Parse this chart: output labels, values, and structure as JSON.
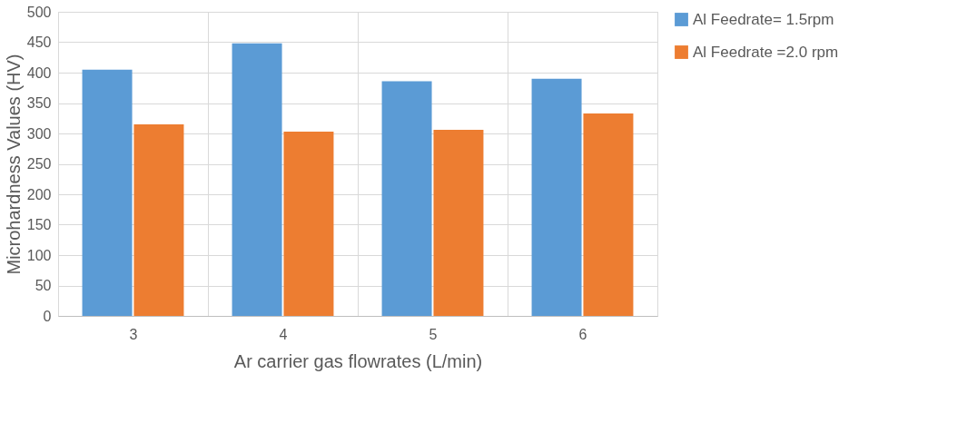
{
  "chart_data": {
    "type": "bar",
    "xlabel": "Ar carrier gas flowrates (L/min)",
    "ylabel": "Microhardness Values (HV)",
    "categories": [
      "3",
      "4",
      "5",
      "6"
    ],
    "series": [
      {
        "name": "Al Feedrate= 1.5rpm",
        "color": "#5b9bd5",
        "values": [
          405,
          448,
          386,
          390
        ]
      },
      {
        "name": "Al Feedrate =2.0 rpm",
        "color": "#ed7d31",
        "values": [
          315,
          303,
          306,
          333
        ]
      }
    ],
    "ylim": [
      0,
      500
    ],
    "yticks": [
      0,
      50,
      100,
      150,
      200,
      250,
      300,
      350,
      400,
      450,
      500
    ],
    "grid": true,
    "legend": "right"
  }
}
